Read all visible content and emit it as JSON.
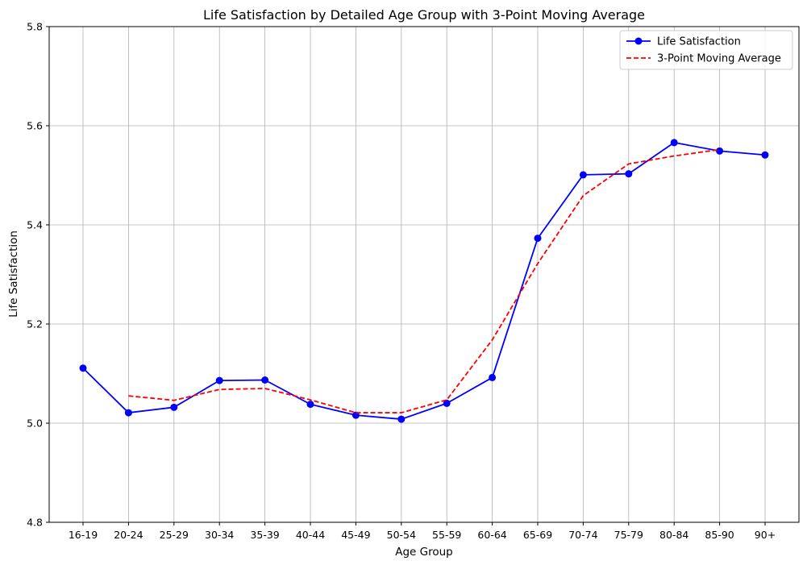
{
  "chart_data": {
    "type": "line",
    "title": "Life Satisfaction by Detailed Age Group with 3-Point Moving Average",
    "xlabel": "Age Group",
    "ylabel": "Life Satisfaction",
    "categories": [
      "16-19",
      "20-24",
      "25-29",
      "30-34",
      "35-39",
      "40-44",
      "45-49",
      "50-54",
      "55-59",
      "60-64",
      "65-69",
      "70-74",
      "75-79",
      "80-84",
      "85-90",
      "90+"
    ],
    "ylim": [
      4.8,
      5.8
    ],
    "yticks": [
      "4.8",
      "5.0",
      "5.2",
      "5.4",
      "5.6",
      "5.8"
    ],
    "grid": true,
    "legend_position": "top-right",
    "series": [
      {
        "name": "Life Satisfaction",
        "color": "#0000ff",
        "style": "solid",
        "marker": "circle",
        "values": [
          5.111,
          5.021,
          5.032,
          5.086,
          5.087,
          5.038,
          5.016,
          5.008,
          5.04,
          5.092,
          5.373,
          5.501,
          5.503,
          5.566,
          5.549,
          5.541
        ]
      },
      {
        "name": "3-Point Moving Average",
        "color": "#ff0000",
        "style": "dashed",
        "marker": "none",
        "values": [
          null,
          5.055,
          5.046,
          5.068,
          5.07,
          5.047,
          5.021,
          5.021,
          5.047,
          5.168,
          5.322,
          5.459,
          5.523,
          5.539,
          5.552,
          null
        ]
      }
    ]
  }
}
